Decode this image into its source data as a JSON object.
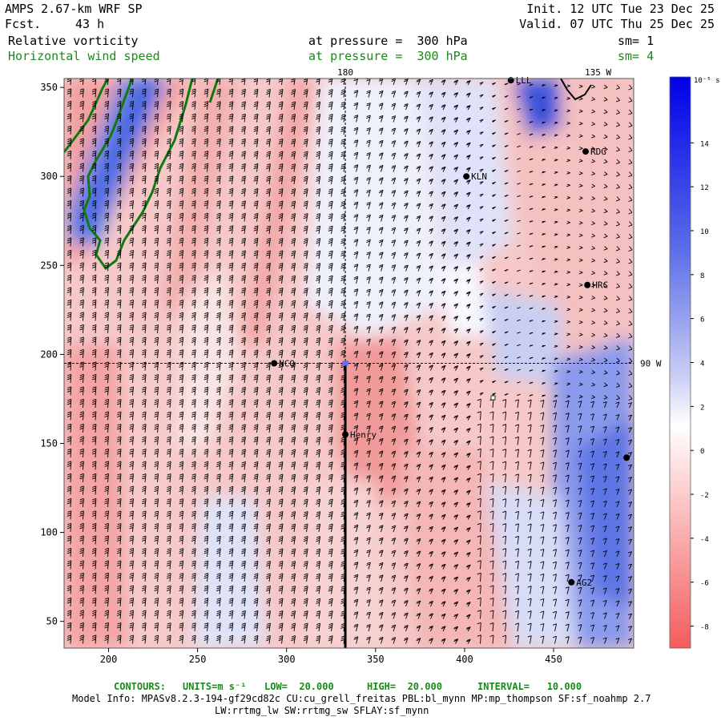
{
  "header": {
    "title": "AMPS 2.67-km WRF SP",
    "forecast_label": "Fcst.",
    "forecast_value": "43 h",
    "init": "Init. 12 UTC Tue 23 Dec 25",
    "valid": "Valid. 07 UTC Thu 25 Dec 25",
    "field1": "Relative vorticity",
    "field1_level": "at pressure =  300 hPa",
    "field1_sm": "sm= 1",
    "field2": "Horizontal wind speed",
    "field2_level": "at pressure =  300 hPa",
    "field2_sm": "sm= 4"
  },
  "chart_data": {
    "type": "heatmap",
    "x_ticks": [
      200,
      250,
      300,
      350,
      400,
      450
    ],
    "y_ticks": [
      50,
      100,
      150,
      200,
      250,
      300,
      350
    ],
    "xlim": [
      175,
      495
    ],
    "ylim": [
      35,
      355
    ],
    "colorbar": {
      "unit": "10⁻⁵ s⁻¹",
      "ticks": [
        14,
        12,
        10,
        8,
        6,
        4,
        2,
        0,
        -2,
        -4,
        -6,
        -8
      ],
      "range": [
        -9,
        17
      ],
      "positive_color": "#0010e0",
      "negative_color": "#ff5050"
    },
    "meridian_labels": [
      {
        "label": "180",
        "x": 333
      },
      {
        "label": "135 W",
        "x": 475
      }
    ],
    "parallel_labels": [
      {
        "label": "90 W",
        "y": 195
      }
    ],
    "stations": [
      {
        "name": "LLL",
        "x": 426,
        "y": 354
      },
      {
        "name": "RDG",
        "x": 468,
        "y": 314
      },
      {
        "name": "KLN",
        "x": 401,
        "y": 300
      },
      {
        "name": "HRC",
        "x": 469,
        "y": 239
      },
      {
        "name": "NCO",
        "x": 293,
        "y": 195
      },
      {
        "name": "Henry",
        "x": 333,
        "y": 155
      },
      {
        "name": "",
        "x": 491,
        "y": 142
      },
      {
        "name": "AG2",
        "x": 460,
        "y": 72
      }
    ]
  },
  "footer": {
    "contours_label": "CONTOURS:",
    "units_label": "UNITS=m s⁻¹",
    "low": "LOW=  20.000",
    "high": "HIGH=  20.000",
    "interval": "INTERVAL=   10.000",
    "model_info_1": "Model Info: MPASv8.2.3-194-gf29cd82c CU:cu_grell_freitas PBL:bl_mynn MP:mp_thompson SF:sf_noahmp 2.7",
    "model_info_2": "LW:rrtmg_lw SW:rrtmg_sw SFLAY:sf_mynn"
  }
}
